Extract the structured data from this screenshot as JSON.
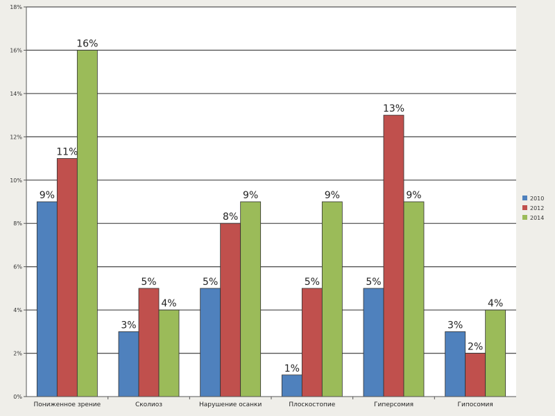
{
  "chart_data": {
    "type": "bar",
    "categories": [
      "Пониженное зрение",
      "Сколиоз",
      "Нарушение осанки",
      "Плоскостопие",
      "Гиперсомия",
      "Гипосомия"
    ],
    "series": [
      {
        "name": "2010",
        "values": [
          9,
          3,
          5,
          1,
          5,
          3
        ],
        "labels": [
          "9%",
          "3%",
          "5%",
          "1%",
          "5%",
          "3%"
        ],
        "color": "#4f81bd"
      },
      {
        "name": "2012",
        "values": [
          11,
          5,
          8,
          5,
          13,
          2
        ],
        "labels": [
          "11%",
          "5%",
          "8%",
          "5%",
          "13%",
          "2%"
        ],
        "color": "#c0504d"
      },
      {
        "name": "2014",
        "values": [
          16,
          4,
          9,
          9,
          9,
          4
        ],
        "labels": [
          "16%",
          "4%",
          "9%",
          "9%",
          "9%",
          "4%"
        ],
        "color": "#9bbb59"
      }
    ],
    "yticks": [
      "0%",
      "2%",
      "4%",
      "6%",
      "8%",
      "10%",
      "12%",
      "14%",
      "16%",
      "18%"
    ],
    "ylim": [
      0,
      18
    ],
    "grid": true,
    "legend_position": "right",
    "title": "",
    "xlabel": "",
    "ylabel": ""
  },
  "colors": {
    "background": "#efeee9",
    "plot_background": "#ffffff",
    "gridline": "#555555"
  }
}
